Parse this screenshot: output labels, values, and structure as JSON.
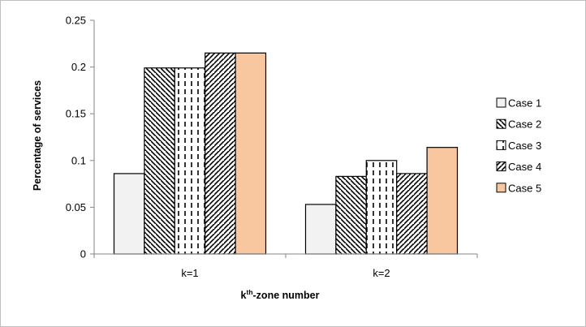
{
  "chart_data": {
    "type": "bar",
    "categories": [
      "k=1",
      "k=2"
    ],
    "series": [
      {
        "name": "Case 1",
        "values": [
          0.086,
          0.053
        ],
        "fill": "#f2f2f2",
        "pattern": "solid-light"
      },
      {
        "name": "Case 2",
        "values": [
          0.199,
          0.083
        ],
        "fill": "#ffffff",
        "pattern": "diagonal-down"
      },
      {
        "name": "Case 3",
        "values": [
          0.199,
          0.1
        ],
        "fill": "#ffffff",
        "pattern": "vertical-dashed"
      },
      {
        "name": "Case 4",
        "values": [
          0.215,
          0.086
        ],
        "fill": "#ffffff",
        "pattern": "diagonal-up"
      },
      {
        "name": "Case 5",
        "values": [
          0.215,
          0.114
        ],
        "fill": "#f9c79f",
        "pattern": "solid"
      }
    ],
    "title": "",
    "xlabel_main": "k",
    "xlabel_sup": "th",
    "xlabel_rest": "-zone number",
    "ylabel": "Percentage of services",
    "ylim": [
      0,
      0.25
    ],
    "yticks": [
      "0",
      "0.05",
      "0.1",
      "0.15",
      "0.2",
      "0.25"
    ],
    "grid": false,
    "legend_position": "right"
  }
}
